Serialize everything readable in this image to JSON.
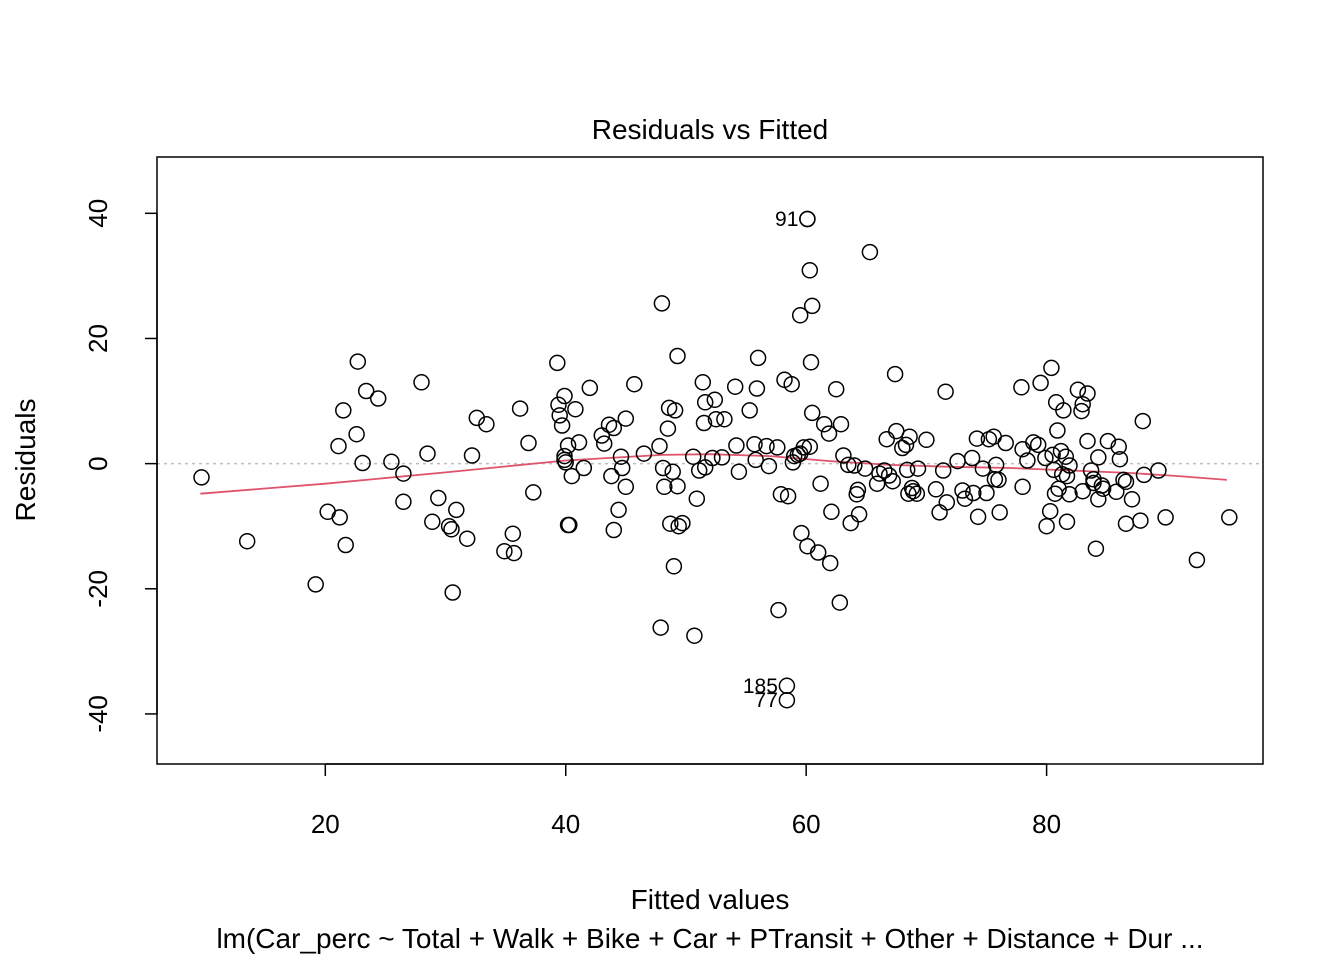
{
  "chart_data": {
    "type": "scatter",
    "title": "Residuals vs Fitted",
    "xlabel": "Fitted values",
    "ylabel": "Residuals",
    "subtitle": "lm(Car_perc ~ Total + Walk + Bike + Car + PTransit + Other + Distance + Dur ...",
    "xlim": [
      6,
      98
    ],
    "ylim": [
      -48,
      49
    ],
    "xticks": [
      20,
      40,
      60,
      80
    ],
    "yticks": [
      -40,
      -20,
      0,
      20,
      40
    ],
    "reference_line_y": 0,
    "grid": false,
    "colors": {
      "points": "#000000",
      "smooth": "#DF536B",
      "reference": "#bebebe"
    },
    "labeled_points": [
      {
        "label": "91",
        "x": 60.1,
        "y": 39.1
      },
      {
        "label": "185",
        "x": 58.4,
        "y": -35.5
      },
      {
        "label": "77",
        "x": 58.4,
        "y": -37.8
      }
    ],
    "smooth_line": [
      [
        9.6,
        -4.8
      ],
      [
        20,
        -3.2
      ],
      [
        30,
        -1.4
      ],
      [
        40,
        0.5
      ],
      [
        48,
        1.4
      ],
      [
        52,
        1.5
      ],
      [
        57,
        1.2
      ],
      [
        62,
        0.4
      ],
      [
        67,
        -0.2
      ],
      [
        72,
        -0.5
      ],
      [
        77,
        -0.7
      ],
      [
        82,
        -1.1
      ],
      [
        87,
        -1.5
      ],
      [
        91,
        -2.0
      ],
      [
        95,
        -2.6
      ]
    ],
    "points": [
      [
        9.7,
        -2.2
      ],
      [
        13.5,
        -12.4
      ],
      [
        19.2,
        -19.3
      ],
      [
        20.2,
        -7.7
      ],
      [
        21.1,
        2.8
      ],
      [
        21.2,
        -8.6
      ],
      [
        21.5,
        8.5
      ],
      [
        21.7,
        -13.0
      ],
      [
        22.6,
        4.7
      ],
      [
        22.7,
        16.3
      ],
      [
        23.1,
        0.1
      ],
      [
        23.4,
        11.6
      ],
      [
        24.4,
        10.4
      ],
      [
        25.5,
        0.3
      ],
      [
        26.5,
        -1.6
      ],
      [
        26.5,
        -6.1
      ],
      [
        28.0,
        13.0
      ],
      [
        28.5,
        1.6
      ],
      [
        28.9,
        -9.3
      ],
      [
        29.4,
        -5.5
      ],
      [
        30.3,
        -10.0
      ],
      [
        30.5,
        -10.5
      ],
      [
        30.6,
        -20.6
      ],
      [
        30.9,
        -7.4
      ],
      [
        31.8,
        -12.0
      ],
      [
        32.2,
        1.3
      ],
      [
        32.6,
        7.3
      ],
      [
        33.4,
        6.3
      ],
      [
        34.9,
        -14.0
      ],
      [
        35.6,
        -11.2
      ],
      [
        35.7,
        -14.3
      ],
      [
        36.2,
        8.8
      ],
      [
        36.9,
        3.3
      ],
      [
        37.3,
        -4.6
      ],
      [
        39.3,
        16.1
      ],
      [
        39.4,
        9.4
      ],
      [
        39.5,
        7.7
      ],
      [
        39.7,
        6.1
      ],
      [
        39.9,
        10.8
      ],
      [
        39.9,
        1.2
      ],
      [
        39.9,
        0.6
      ],
      [
        40.0,
        0.2
      ],
      [
        40.2,
        2.9
      ],
      [
        40.2,
        -9.8
      ],
      [
        40.3,
        -9.8
      ],
      [
        40.5,
        -2.0
      ],
      [
        40.8,
        8.7
      ],
      [
        41.1,
        3.4
      ],
      [
        41.5,
        -0.7
      ],
      [
        42.0,
        12.1
      ],
      [
        43.0,
        4.5
      ],
      [
        43.2,
        3.2
      ],
      [
        43.6,
        6.2
      ],
      [
        43.8,
        -2.0
      ],
      [
        44.0,
        5.7
      ],
      [
        44.0,
        -10.6
      ],
      [
        44.4,
        -7.4
      ],
      [
        44.6,
        1.1
      ],
      [
        44.7,
        -0.7
      ],
      [
        45.0,
        -3.7
      ],
      [
        45.0,
        7.2
      ],
      [
        45.7,
        12.7
      ],
      [
        46.5,
        1.6
      ],
      [
        47.8,
        2.8
      ],
      [
        47.9,
        -26.2
      ],
      [
        48.0,
        25.6
      ],
      [
        48.1,
        -0.7
      ],
      [
        48.2,
        -3.7
      ],
      [
        48.5,
        5.6
      ],
      [
        48.6,
        8.9
      ],
      [
        48.7,
        -9.6
      ],
      [
        48.9,
        -1.3
      ],
      [
        49.0,
        -16.4
      ],
      [
        49.1,
        8.5
      ],
      [
        49.3,
        -3.6
      ],
      [
        49.3,
        17.2
      ],
      [
        49.4,
        -10.0
      ],
      [
        49.7,
        -9.5
      ],
      [
        50.6,
        1.1
      ],
      [
        50.7,
        -27.5
      ],
      [
        50.9,
        -5.6
      ],
      [
        51.1,
        -1.1
      ],
      [
        51.4,
        13.0
      ],
      [
        51.5,
        6.5
      ],
      [
        51.6,
        -0.6
      ],
      [
        51.6,
        9.8
      ],
      [
        52.2,
        0.9
      ],
      [
        52.4,
        10.2
      ],
      [
        52.5,
        7.1
      ],
      [
        53.0,
        1.0
      ],
      [
        53.2,
        7.1
      ],
      [
        54.1,
        12.3
      ],
      [
        54.2,
        2.9
      ],
      [
        54.4,
        -1.3
      ],
      [
        55.3,
        8.5
      ],
      [
        55.7,
        3.1
      ],
      [
        55.8,
        0.6
      ],
      [
        55.9,
        12.0
      ],
      [
        56.0,
        16.9
      ],
      [
        56.7,
        2.8
      ],
      [
        56.9,
        -0.4
      ],
      [
        57.6,
        2.6
      ],
      [
        57.7,
        -23.4
      ],
      [
        57.9,
        -4.9
      ],
      [
        58.2,
        13.4
      ],
      [
        58.5,
        -5.2
      ],
      [
        58.8,
        12.7
      ],
      [
        58.9,
        0.2
      ],
      [
        59.0,
        1.2
      ],
      [
        59.3,
        1.4
      ],
      [
        59.5,
        1.6
      ],
      [
        59.5,
        23.7
      ],
      [
        59.6,
        -11.1
      ],
      [
        59.8,
        2.6
      ],
      [
        60.1,
        39.1
      ],
      [
        60.3,
        30.9
      ],
      [
        60.4,
        16.2
      ],
      [
        60.5,
        8.1
      ],
      [
        60.5,
        25.2
      ],
      [
        60.1,
        -13.2
      ],
      [
        60.3,
        2.7
      ],
      [
        61.0,
        -14.2
      ],
      [
        61.2,
        -3.2
      ],
      [
        61.5,
        6.3
      ],
      [
        61.9,
        4.8
      ],
      [
        62.0,
        -15.9
      ],
      [
        62.1,
        -7.7
      ],
      [
        62.5,
        11.9
      ],
      [
        62.8,
        -22.2
      ],
      [
        62.9,
        6.3
      ],
      [
        63.1,
        1.3
      ],
      [
        63.5,
        -0.2
      ],
      [
        63.7,
        -9.5
      ],
      [
        64.0,
        -0.3
      ],
      [
        64.2,
        -4.9
      ],
      [
        64.3,
        -4.2
      ],
      [
        64.4,
        -8.1
      ],
      [
        64.9,
        -0.8
      ],
      [
        65.3,
        33.8
      ],
      [
        65.9,
        -3.2
      ],
      [
        66.1,
        -1.6
      ],
      [
        66.5,
        -1.1
      ],
      [
        66.7,
        3.9
      ],
      [
        66.9,
        -1.9
      ],
      [
        67.2,
        -2.8
      ],
      [
        67.4,
        14.3
      ],
      [
        67.5,
        5.2
      ],
      [
        68.0,
        2.5
      ],
      [
        68.3,
        3.0
      ],
      [
        68.4,
        -1.0
      ],
      [
        68.5,
        -4.8
      ],
      [
        68.6,
        4.3
      ],
      [
        68.8,
        -3.9
      ],
      [
        68.9,
        -4.4
      ],
      [
        69.2,
        -4.8
      ],
      [
        69.3,
        -0.8
      ],
      [
        70.0,
        3.8
      ],
      [
        70.8,
        -4.1
      ],
      [
        71.1,
        -7.8
      ],
      [
        71.4,
        -1.1
      ],
      [
        71.6,
        11.5
      ],
      [
        71.7,
        -6.2
      ],
      [
        72.6,
        0.4
      ],
      [
        73.0,
        -4.3
      ],
      [
        73.2,
        -5.6
      ],
      [
        73.8,
        0.9
      ],
      [
        73.9,
        -4.7
      ],
      [
        74.2,
        4.0
      ],
      [
        74.3,
        -8.5
      ],
      [
        74.7,
        -0.8
      ],
      [
        75.0,
        -4.7
      ],
      [
        75.2,
        3.9
      ],
      [
        75.6,
        4.3
      ],
      [
        75.7,
        -2.5
      ],
      [
        75.8,
        -0.2
      ],
      [
        76.0,
        -2.6
      ],
      [
        76.1,
        -7.8
      ],
      [
        76.6,
        3.3
      ],
      [
        77.9,
        12.2
      ],
      [
        78.0,
        -3.7
      ],
      [
        78.0,
        2.3
      ],
      [
        78.4,
        0.5
      ],
      [
        78.9,
        3.4
      ],
      [
        79.3,
        3.0
      ],
      [
        79.5,
        12.9
      ],
      [
        79.9,
        0.9
      ],
      [
        80.0,
        -10.0
      ],
      [
        80.3,
        -7.6
      ],
      [
        80.4,
        15.3
      ],
      [
        80.5,
        1.4
      ],
      [
        80.6,
        -1.0
      ],
      [
        80.7,
        -4.8
      ],
      [
        80.8,
        9.8
      ],
      [
        80.9,
        5.3
      ],
      [
        81.0,
        -4.0
      ],
      [
        81.2,
        2.0
      ],
      [
        81.3,
        -1.7
      ],
      [
        81.4,
        8.5
      ],
      [
        81.6,
        1.1
      ],
      [
        81.7,
        -9.3
      ],
      [
        81.7,
        -2.0
      ],
      [
        81.9,
        -4.9
      ],
      [
        81.9,
        -0.3
      ],
      [
        82.6,
        11.8
      ],
      [
        82.9,
        8.4
      ],
      [
        83.0,
        9.5
      ],
      [
        83.0,
        -4.4
      ],
      [
        83.4,
        11.2
      ],
      [
        83.4,
        3.6
      ],
      [
        83.7,
        -1.1
      ],
      [
        83.9,
        -2.5
      ],
      [
        83.9,
        -3.1
      ],
      [
        84.1,
        -13.6
      ],
      [
        84.3,
        -5.7
      ],
      [
        84.3,
        1.0
      ],
      [
        84.6,
        -3.5
      ],
      [
        84.7,
        -4.0
      ],
      [
        85.1,
        3.6
      ],
      [
        85.8,
        -4.5
      ],
      [
        86.0,
        2.7
      ],
      [
        86.1,
        0.7
      ],
      [
        86.4,
        -2.6
      ],
      [
        86.6,
        -2.9
      ],
      [
        86.6,
        -9.6
      ],
      [
        87.1,
        -5.7
      ],
      [
        87.8,
        -9.1
      ],
      [
        88.0,
        6.8
      ],
      [
        88.1,
        -1.8
      ],
      [
        89.3,
        -1.1
      ],
      [
        89.9,
        -8.6
      ],
      [
        92.5,
        -15.4
      ],
      [
        95.2,
        -8.6
      ]
    ]
  }
}
